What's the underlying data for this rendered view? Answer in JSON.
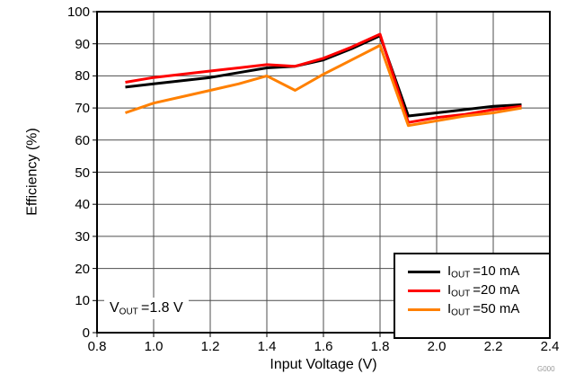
{
  "chart_data": {
    "type": "line",
    "title": "",
    "xlabel": "Input Voltage (V)",
    "ylabel": "Efficiency (%)",
    "xlim": [
      0.8,
      2.4
    ],
    "ylim": [
      0,
      100
    ],
    "x_ticks": [
      "0.8",
      "1.0",
      "1.2",
      "1.4",
      "1.6",
      "1.8",
      "2.0",
      "2.2",
      "2.4"
    ],
    "y_ticks": [
      "0",
      "10",
      "20",
      "30",
      "40",
      "50",
      "60",
      "70",
      "80",
      "90",
      "100"
    ],
    "grid": true,
    "legend_position": "bottom-right",
    "x": [
      0.9,
      1.0,
      1.1,
      1.2,
      1.3,
      1.4,
      1.5,
      1.6,
      1.7,
      1.8,
      1.9,
      2.0,
      2.1,
      2.2,
      2.3
    ],
    "series": [
      {
        "name": "IOUT = 10 mA",
        "label": {
          "sym": "I",
          "sub": "OUT",
          "rest": " =10 mA"
        },
        "color": "#000000",
        "values": [
          76.5,
          77.5,
          78.5,
          79.5,
          81,
          82.5,
          83,
          85,
          88.5,
          92.5,
          67.5,
          68.5,
          69.5,
          70.5,
          71
        ]
      },
      {
        "name": "IOUT = 20 mA",
        "label": {
          "sym": "I",
          "sub": "OUT",
          "rest": " =20 mA"
        },
        "color": "#ff0000",
        "values": [
          78,
          79.5,
          80.5,
          81.5,
          82.5,
          83.5,
          83,
          85.5,
          89,
          93,
          65.5,
          67,
          68,
          69.5,
          70.5
        ]
      },
      {
        "name": "IOUT = 50 mA",
        "label": {
          "sym": "I",
          "sub": "OUT",
          "rest": " =50 mA"
        },
        "color": "#ff8000",
        "values": [
          68.5,
          71.5,
          73.5,
          75.5,
          77.5,
          80,
          75.5,
          80.5,
          85,
          89.5,
          64.5,
          66,
          67.5,
          68.5,
          70
        ]
      }
    ]
  },
  "annotation": {
    "sym": "V",
    "sub": "OUT",
    "rest": " =1.8 V"
  },
  "watermark": "G000"
}
